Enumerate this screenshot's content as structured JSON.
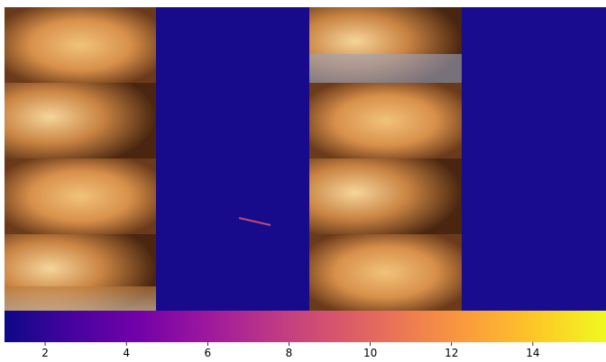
{
  "colorbar": {
    "colormap": "plasma",
    "clim": [
      1,
      15.8
    ],
    "ticks": [
      2,
      4,
      6,
      8,
      10,
      12,
      14
    ]
  }
}
